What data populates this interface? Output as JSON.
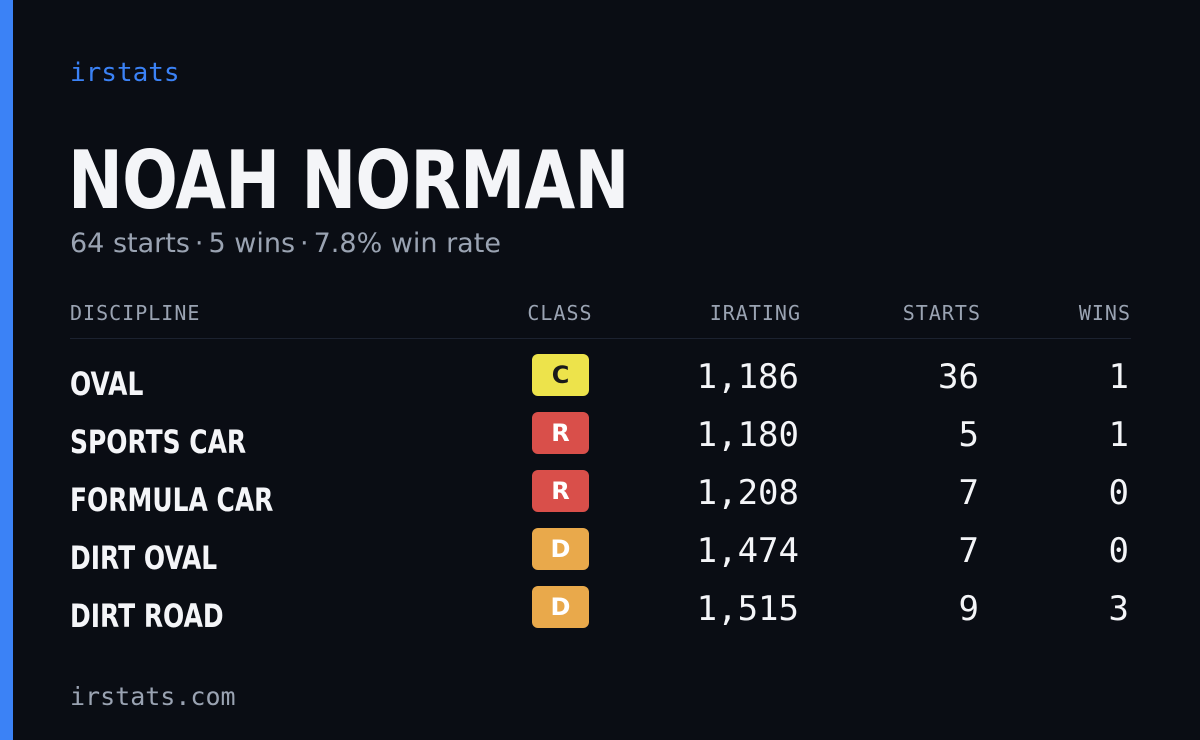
{
  "brand": "irstats",
  "player": {
    "name": "NOAH NORMAN"
  },
  "summary": {
    "starts": "64 starts",
    "separator": "·",
    "wins": "5 wins",
    "win_rate": "7.8% win rate"
  },
  "table": {
    "headers": {
      "discipline": "DISCIPLINE",
      "class": "CLASS",
      "irating": "IRATING",
      "starts": "STARTS",
      "wins": "WINS"
    },
    "rows": [
      {
        "discipline": "OVAL",
        "class": "C",
        "class_color": "#ede34b",
        "class_text_color": "#1a1a1a",
        "irating": "1,186",
        "starts": "36",
        "wins": "1"
      },
      {
        "discipline": "SPORTS CAR",
        "class": "R",
        "class_color": "#d94f4a",
        "class_text_color": "#ffffff",
        "irating": "1,180",
        "starts": "5",
        "wins": "1"
      },
      {
        "discipline": "FORMULA CAR",
        "class": "R",
        "class_color": "#d94f4a",
        "class_text_color": "#ffffff",
        "irating": "1,208",
        "starts": "7",
        "wins": "0"
      },
      {
        "discipline": "DIRT OVAL",
        "class": "D",
        "class_color": "#e9a94b",
        "class_text_color": "#ffffff",
        "irating": "1,474",
        "starts": "7",
        "wins": "0"
      },
      {
        "discipline": "DIRT ROAD",
        "class": "D",
        "class_color": "#e9a94b",
        "class_text_color": "#ffffff",
        "irating": "1,515",
        "starts": "9",
        "wins": "3"
      }
    ]
  },
  "footer": {
    "url": "irstats.com"
  },
  "colors": {
    "background": "#0a0d14",
    "accent": "#3b82f6",
    "muted_text": "#9aa3b2",
    "primary_text": "#f4f5f8"
  }
}
